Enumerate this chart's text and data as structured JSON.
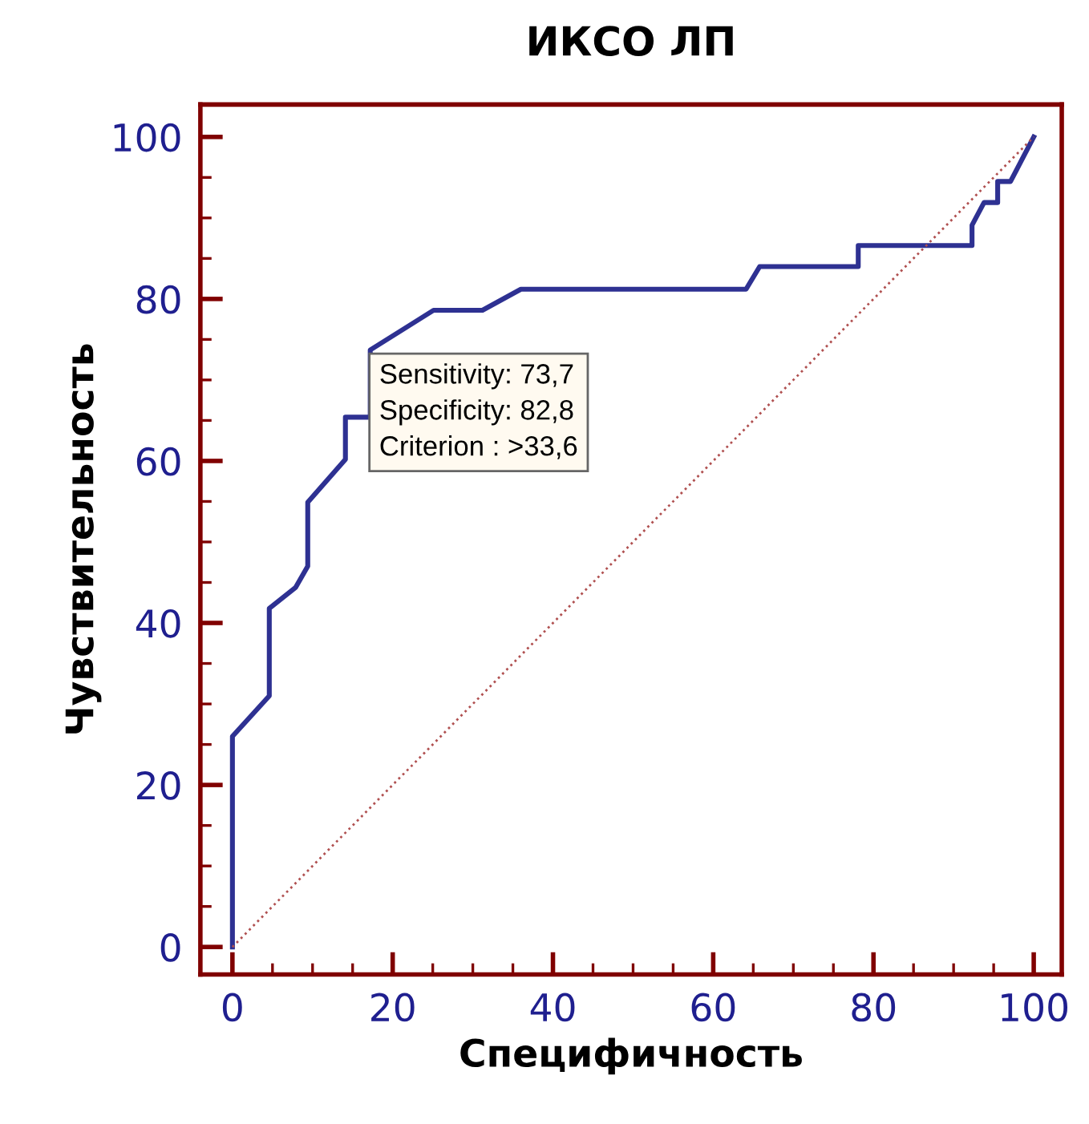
{
  "chart_data": {
    "type": "line",
    "title": "ИКСО ЛП",
    "xlabel": "Специфичность",
    "ylabel": "Чувствительность",
    "series": [
      {
        "color": "#2e3192",
        "line_style": "solid",
        "x": [
          0,
          0,
          4.6,
          4.6,
          7.9,
          9.4,
          9.4,
          14.1,
          14.1,
          17.2,
          17.2,
          25.1,
          31.2,
          36.0,
          64.1,
          65.8,
          78.1,
          78.1,
          92.3,
          92.3,
          93.8,
          95.5,
          95.5,
          97.1,
          100
        ],
        "values": [
          0,
          26.0,
          31.0,
          41.8,
          44.4,
          47.0,
          54.9,
          60.2,
          65.4,
          65.4,
          73.7,
          78.6,
          78.6,
          81.2,
          81.2,
          84.0,
          84.0,
          86.6,
          86.6,
          89.1,
          91.9,
          91.9,
          94.5,
          94.5,
          100
        ]
      },
      {
        "color": "#b05050",
        "line_style": "dotted",
        "x": [
          0,
          100
        ],
        "values": [
          0,
          100
        ]
      }
    ],
    "annotations": [
      {
        "text": "Sensitivity: 73,7\nSpecificity: 82,8\nCriterion : >33,6",
        "x": 17.2,
        "y": 73.7
      }
    ],
    "xlim": [
      -4,
      103.5
    ],
    "ylim": [
      -3.4,
      104
    ],
    "xticks": [
      0,
      {
        "value": 5,
        "label": null
      },
      {
        "value": 10,
        "label": null
      },
      {
        "value": 15,
        "label": null
      },
      20,
      {
        "value": 25,
        "label": null
      },
      {
        "value": 30,
        "label": null
      },
      {
        "value": 35,
        "label": null
      },
      40,
      {
        "value": 45,
        "label": null
      },
      {
        "value": 50,
        "label": null
      },
      {
        "value": 55,
        "label": null
      },
      60,
      {
        "value": 65,
        "label": null
      },
      {
        "value": 70,
        "label": null
      },
      {
        "value": 75,
        "label": null
      },
      80,
      {
        "value": 85,
        "label": null
      },
      {
        "value": 90,
        "label": null
      },
      {
        "value": 95,
        "label": null
      },
      100
    ],
    "yticks": [
      0,
      {
        "value": 5,
        "label": null
      },
      {
        "value": 10,
        "label": null
      },
      {
        "value": 15,
        "label": null
      },
      20,
      {
        "value": 25,
        "label": null
      },
      {
        "value": 30,
        "label": null
      },
      {
        "value": 35,
        "label": null
      },
      40,
      {
        "value": 45,
        "label": null
      },
      {
        "value": 50,
        "label": null
      },
      {
        "value": 55,
        "label": null
      },
      60,
      {
        "value": 65,
        "label": null
      },
      {
        "value": 70,
        "label": null
      },
      {
        "value": 75,
        "label": null
      },
      80,
      {
        "value": 85,
        "label": null
      },
      {
        "value": 90,
        "label": null
      },
      {
        "value": 95,
        "label": null
      },
      100
    ],
    "grid": false,
    "legend": false
  }
}
